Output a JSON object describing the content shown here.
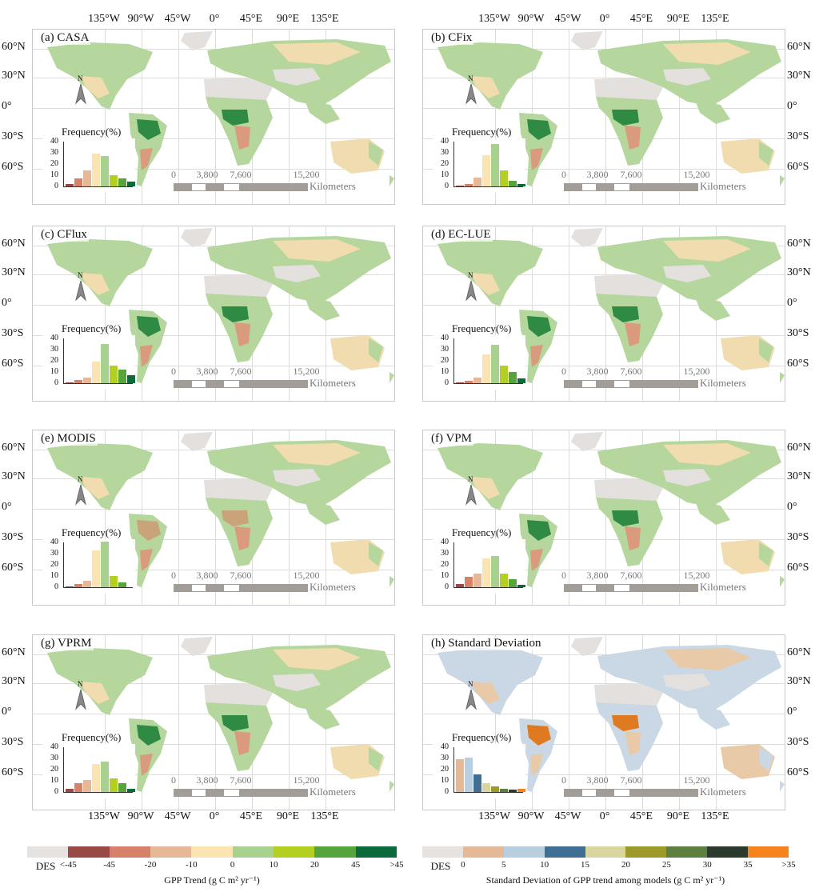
{
  "lon_labels": [
    "135°W",
    "90°W",
    "45°W",
    "0°",
    "45°E",
    "90°E",
    "135°E"
  ],
  "lat_labels": [
    "60°N",
    "30°N",
    "0°",
    "30°S",
    "60°S"
  ],
  "freq_title": "Frequency(%)",
  "freq_yticks": [
    "40",
    "30",
    "20",
    "10",
    "0"
  ],
  "north_label": "N",
  "scale_labels": [
    "0",
    "3,800",
    "7,600",
    "15,200"
  ],
  "scale_unit": "Kilometers",
  "panels": [
    {
      "label": "(a) CASA",
      "hist": [
        2,
        7,
        14,
        29,
        27,
        10,
        7,
        4
      ],
      "colors": "trend"
    },
    {
      "label": "(b) CFix",
      "hist": [
        1,
        2,
        8,
        28,
        38,
        14,
        5,
        2
      ],
      "colors": "trend"
    },
    {
      "label": "(c) CFlux",
      "hist": [
        1,
        3,
        5,
        19,
        35,
        16,
        12,
        7
      ],
      "colors": "trend"
    },
    {
      "label": "(d) EC-LUE",
      "hist": [
        0.5,
        2,
        5,
        26,
        34,
        16,
        10,
        4
      ],
      "colors": "trend"
    },
    {
      "label": "(e) MODIS",
      "hist": [
        1,
        3,
        6,
        33,
        41,
        10,
        4
      ],
      "colors": "trend7"
    },
    {
      "label": "(f) VPM",
      "hist": [
        3,
        9,
        12,
        26,
        28,
        12,
        7,
        2
      ],
      "colors": "trend"
    },
    {
      "label": "(g) VPRM",
      "hist": [
        3,
        8,
        11,
        25,
        27,
        12,
        8,
        3
      ],
      "colors": "trend"
    },
    {
      "label": "(h) Standard Deviation",
      "hist": [
        29,
        31,
        16,
        8,
        5,
        3,
        2,
        3
      ],
      "colors": "sd"
    }
  ],
  "legend_trend": {
    "colors": [
      "#e6e2e0",
      "#9a4a45",
      "#d7806a",
      "#e6b896",
      "#fce4b2",
      "#a8d08f",
      "#b3cf22",
      "#55a43c",
      "#0b6a3a"
    ],
    "labels": [
      "DES",
      "<-45",
      "-45",
      "-20",
      "-10",
      "0",
      "10",
      "20",
      "45",
      ">45"
    ],
    "title": "GPP Trend (g C m² yr⁻¹)"
  },
  "legend_sd": {
    "colors": [
      "#e6e2e0",
      "#e5b896",
      "#b8cfe0",
      "#3f6f93",
      "#d8d59e",
      "#9b9a2a",
      "#5d7f3f",
      "#2c3a2e",
      "#f5841f"
    ],
    "labels": [
      "DES",
      "0",
      "5",
      "10",
      "15",
      "20",
      "25",
      "30",
      "35",
      ">35"
    ],
    "title": "Standard Deviation of GPP trend among models (g C m² yr⁻¹)"
  }
}
